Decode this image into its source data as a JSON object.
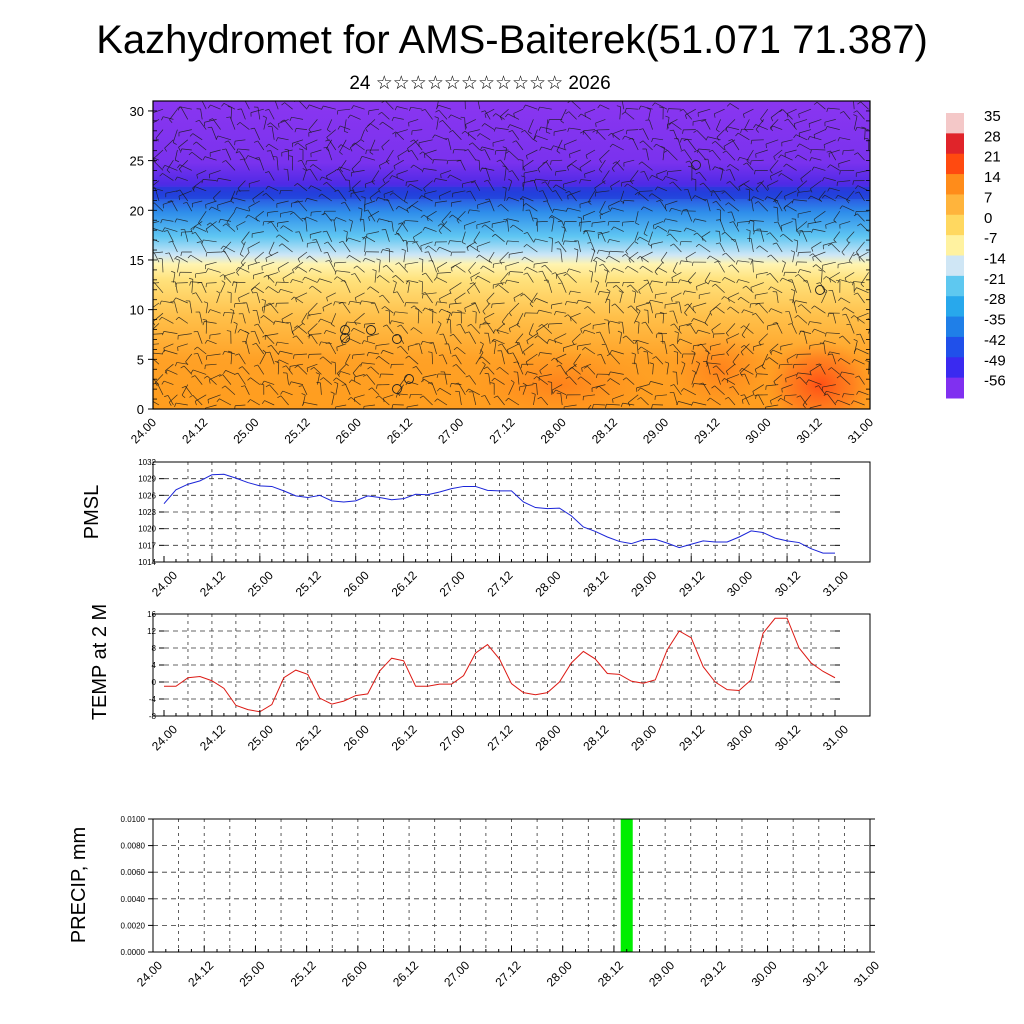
{
  "title": "Kazhydromet for AMS-Baiterek(51.071 71.387)",
  "subtitle": "24 ☆☆☆☆☆☆☆☆☆☆☆ 2026",
  "chart_data": [
    {
      "type": "heatmap",
      "name": "vertical-section",
      "xlabel": "",
      "ylabel": "",
      "ylim": [
        0,
        31
      ],
      "yticks": [
        0,
        5,
        10,
        15,
        20,
        25,
        30
      ],
      "x_ticklabels": [
        "24.00",
        "24.12",
        "25.00",
        "25.12",
        "26.00",
        "26.12",
        "27.00",
        "27.12",
        "28.00",
        "28.12",
        "29.00",
        "29.12",
        "30.00",
        "30.12",
        "31.00"
      ],
      "colorbar": {
        "labels": [
          "35",
          "28",
          "21",
          "14",
          "7",
          "0",
          "-7",
          "-14",
          "-21",
          "-28",
          "-35",
          "-42",
          "-49",
          "-56"
        ],
        "colors": [
          "#f4c8c8",
          "#e0242a",
          "#ff4a10",
          "#ff8c1a",
          "#ffb43c",
          "#ffd860",
          "#fff2a0",
          "#cfe6f5",
          "#5ec8f0",
          "#28a8ec",
          "#1f7fe8",
          "#2050ea",
          "#3a2af0",
          "#8030f0"
        ]
      },
      "overlay": "wind-barbs"
    },
    {
      "type": "line",
      "name": "pmsl",
      "ylabel": "PMSL",
      "ylim": [
        1014,
        1032
      ],
      "yticks": [
        1014,
        1017,
        1020,
        1023,
        1026,
        1029,
        1032
      ],
      "x_ticklabels": [
        "24.00",
        "24.12",
        "25.00",
        "25.12",
        "26.00",
        "26.12",
        "27.00",
        "27.12",
        "28.00",
        "28.12",
        "29.00",
        "29.12",
        "30.00",
        "30.12",
        "31.00"
      ],
      "x_hours_range": [
        0,
        168
      ],
      "series": [
        {
          "name": "PMSL",
          "color": "#1a24d8",
          "x": [
            0,
            3,
            6,
            9,
            12,
            15,
            18,
            21,
            24,
            27,
            30,
            33,
            36,
            39,
            42,
            45,
            48,
            51,
            54,
            57,
            60,
            63,
            66,
            69,
            72,
            75,
            78,
            81,
            84,
            87,
            90,
            93,
            96,
            99,
            102,
            105,
            108,
            111,
            114,
            117,
            120,
            123,
            126,
            129,
            132,
            135,
            138,
            141,
            144,
            147,
            150,
            153,
            156,
            159,
            162,
            165,
            168
          ],
          "values": [
            1024.5,
            1027,
            1028,
            1028.6,
            1029.7,
            1029.8,
            1029.1,
            1028.3,
            1027.7,
            1027.6,
            1026.8,
            1025.9,
            1025.6,
            1026,
            1025,
            1024.8,
            1025,
            1025.9,
            1025.6,
            1025.2,
            1025.4,
            1026.2,
            1026.1,
            1026.6,
            1027.2,
            1027.6,
            1027.6,
            1026.9,
            1026.8,
            1026.8,
            1024.8,
            1023.8,
            1023.6,
            1023.7,
            1022.3,
            1020.3,
            1019.5,
            1018.5,
            1017.7,
            1017.3,
            1018,
            1018.1,
            1017.4,
            1016.6,
            1017.2,
            1017.8,
            1017.6,
            1017.6,
            1018.5,
            1019.6,
            1019.3,
            1018.3,
            1017.8,
            1017.5,
            1016.4,
            1015.6,
            1015.6
          ]
        }
      ]
    },
    {
      "type": "line",
      "name": "temp-2m",
      "ylabel": "TEMP at 2 M",
      "ylim": [
        -8,
        16
      ],
      "yticks": [
        -8,
        -4,
        0,
        4,
        8,
        12,
        16
      ],
      "x_ticklabels": [
        "24.00",
        "24.12",
        "25.00",
        "25.12",
        "26.00",
        "26.12",
        "27.00",
        "27.12",
        "28.00",
        "28.12",
        "29.00",
        "29.12",
        "30.00",
        "30.12",
        "31.00"
      ],
      "x_hours_range": [
        0,
        168
      ],
      "series": [
        {
          "name": "TEMP at 2 M",
          "color": "#dc1a14",
          "x": [
            0,
            3,
            6,
            9,
            12,
            15,
            18,
            21,
            24,
            27,
            30,
            33,
            36,
            39,
            42,
            45,
            48,
            51,
            54,
            57,
            60,
            63,
            66,
            69,
            72,
            75,
            78,
            81,
            84,
            87,
            90,
            93,
            96,
            99,
            102,
            105,
            108,
            111,
            114,
            117,
            120,
            123,
            126,
            129,
            132,
            135,
            138,
            141,
            144,
            147,
            150,
            153,
            156,
            159,
            162,
            165,
            168
          ],
          "values": [
            -1,
            -1,
            1,
            1.3,
            0.3,
            -1.5,
            -5.5,
            -6.5,
            -7,
            -5.3,
            1,
            2.8,
            1.8,
            -3.8,
            -5.2,
            -4.5,
            -3.2,
            -2.8,
            2.6,
            5.6,
            5,
            -1,
            -1,
            -0.5,
            -0.5,
            1.5,
            6.8,
            8.8,
            5.4,
            -0.4,
            -2.5,
            -3,
            -2.5,
            0,
            4.5,
            7.2,
            5.4,
            2,
            1.8,
            0.2,
            -0.3,
            0.5,
            7.6,
            12,
            10.4,
            3.6,
            0,
            -1.8,
            -2,
            0.5,
            11.5,
            15,
            15,
            8,
            4.5,
            2.5,
            1
          ]
        }
      ]
    },
    {
      "type": "bar",
      "name": "precip",
      "ylabel": "PRECIP, mm",
      "ylim": [
        0,
        0.01
      ],
      "yticks": [
        "0.0000",
        "0.0020",
        "0.0040",
        "0.0060",
        "0.0080",
        "0.0100"
      ],
      "x_ticklabels": [
        "24.00",
        "24.12",
        "25.00",
        "25.12",
        "26.00",
        "26.12",
        "27.00",
        "27.12",
        "28.00",
        "28.12",
        "29.00",
        "29.12",
        "30.00",
        "30.12",
        "31.00"
      ],
      "x_hours_range": [
        0,
        168
      ],
      "bars": [
        {
          "x": 111,
          "value": 0.01,
          "color": "#00ee00"
        }
      ]
    }
  ]
}
